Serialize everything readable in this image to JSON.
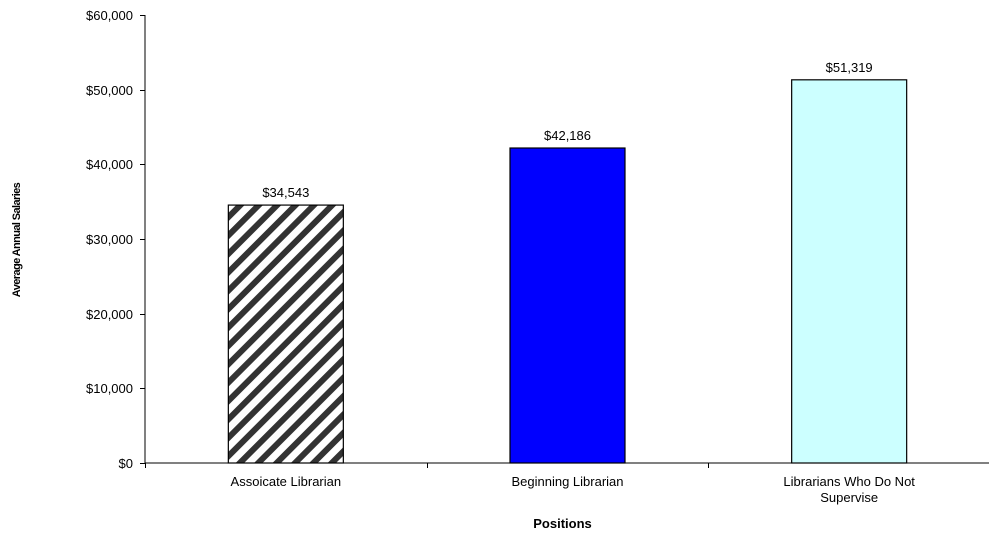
{
  "chart_data": {
    "type": "bar",
    "title": "",
    "xlabel": "Positions",
    "ylabel": "Average Annual Salaries",
    "categories": [
      [
        "Assoicate Librarian"
      ],
      [
        "Beginning Librarian"
      ],
      [
        "Librarians Who Do Not",
        "Supervise"
      ]
    ],
    "values": [
      34543,
      42186,
      51319
    ],
    "data_labels": [
      "$34,543",
      "$42,186",
      "$51,319"
    ],
    "bar_styles": [
      {
        "fill": "hatch",
        "color": "#333333"
      },
      {
        "fill": "solid",
        "color": "#0000FF"
      },
      {
        "fill": "solid",
        "color": "#CCFFFF"
      }
    ],
    "ylim": [
      0,
      60000
    ],
    "yticks": [
      0,
      10000,
      20000,
      30000,
      40000,
      50000,
      60000
    ],
    "ytick_labels": [
      "$0",
      "$10,000",
      "$20,000",
      "$30,000",
      "$40,000",
      "$50,000",
      "$60,000"
    ],
    "grid": false,
    "legend": "none"
  }
}
